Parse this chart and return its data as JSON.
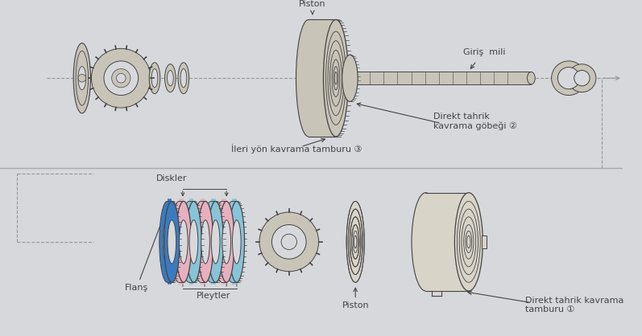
{
  "bg_color": "#d6d8dc",
  "labels": {
    "flans": "Flanş",
    "pleytler": "Pleytler",
    "diskler": "Diskler",
    "piston_top": "Piston",
    "direkt_tambur": "Direkt tahrik kavrama\ntamburu ①",
    "ileri_tambur": "İleri yön kavrama tamburu ③",
    "direkt_gobek": "Direkt tahrik\nkavrama göbeği ②",
    "giris_mili": "Giriş  mili",
    "piston_bot": "Piston"
  },
  "blue_dark": "#3a7bbf",
  "blue_light": "#88c4d8",
  "pink": "#e8b0be",
  "line_color": "#444444",
  "dashed_color": "#999999",
  "part_color": "#c8c4b8",
  "part_color2": "#d8d4c8"
}
